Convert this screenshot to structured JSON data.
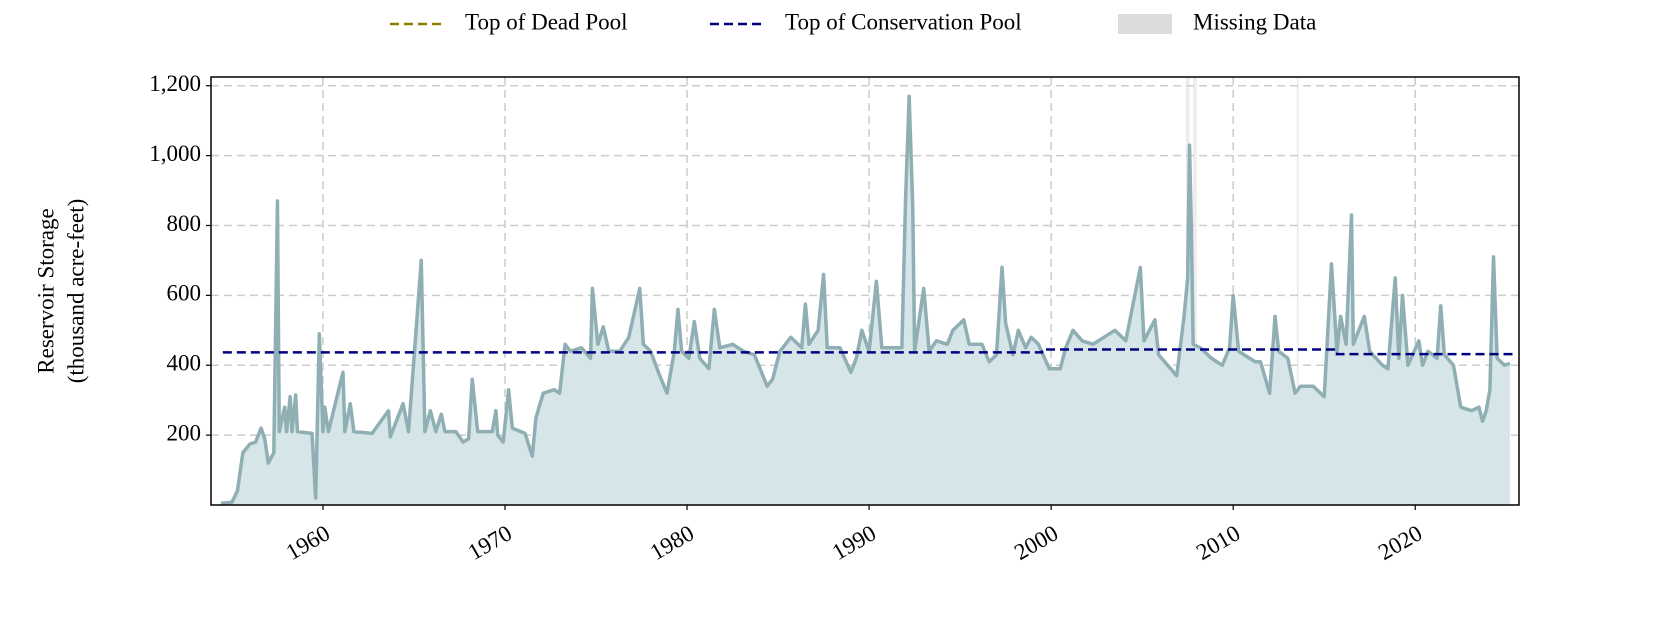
{
  "chart_data": {
    "type": "area-line",
    "y_label": [
      "Reservoir Storage",
      "(thousand acre-feet)"
    ],
    "xlim": [
      1953.85,
      2025.7
    ],
    "xticks": [
      1960,
      1970,
      1980,
      1990,
      2000,
      2010,
      2020
    ],
    "ylim": [
      0,
      1225
    ],
    "yticks": [
      200,
      400,
      600,
      800,
      {
        "value": 1000,
        "label": "1,000"
      },
      {
        "value": 1200,
        "label": "1,200"
      }
    ],
    "grid": true,
    "series": [
      {
        "color": "#8fafb4",
        "fill": "#d6e5e7",
        "x": [
          1954.4,
          1955.0,
          1955.3,
          1955.6,
          1956.0,
          1956.3,
          1956.6,
          1956.8,
          1957.0,
          1957.3,
          1957.5,
          1957.6,
          1957.9,
          1958.0,
          1958.2,
          1958.3,
          1958.5,
          1958.6,
          1959.4,
          1959.6,
          1959.8,
          1960.0,
          1960.1,
          1960.3,
          1961.1,
          1961.2,
          1961.5,
          1961.7,
          1962.7,
          1963.6,
          1963.7,
          1964.4,
          1964.7,
          1965.4,
          1965.6,
          1965.9,
          1966.2,
          1966.5,
          1966.7,
          1967.3,
          1967.7,
          1968.0,
          1968.2,
          1968.3,
          1968.5,
          1969.3,
          1969.5,
          1969.6,
          1969.9,
          1970.2,
          1970.4,
          1971.1,
          1971.5,
          1971.7,
          1972.1,
          1972.7,
          1973.0,
          1973.3,
          1973.6,
          1974.2,
          1974.7,
          1974.8,
          1975.1,
          1975.4,
          1975.7,
          1976.3,
          1976.8,
          1977.4,
          1977.6,
          1978.0,
          1978.5,
          1978.9,
          1979.3,
          1979.5,
          1979.7,
          1980.1,
          1980.4,
          1980.7,
          1981.2,
          1981.5,
          1981.8,
          1982.5,
          1983.1,
          1983.7,
          1984.4,
          1984.7,
          1985.1,
          1985.7,
          1986.3,
          1986.5,
          1986.7,
          1987.2,
          1987.5,
          1987.7,
          1988.4,
          1989.0,
          1989.3,
          1989.6,
          1990.0,
          1990.4,
          1990.7,
          1991.8,
          1992.0,
          1992.2,
          1992.4,
          1992.5,
          1993.0,
          1993.3,
          1993.7,
          1994.3,
          1994.6,
          1995.2,
          1995.5,
          1996.2,
          1996.6,
          1997.0,
          1997.3,
          1997.5,
          1997.9,
          1998.2,
          1998.6,
          1998.9,
          1999.3,
          1999.9,
          2000.5,
          2000.8,
          2001.2,
          2001.7,
          2002.3,
          2002.9,
          2003.5,
          2004.1,
          2004.9,
          2005.1,
          2005.7,
          2005.9,
          2006.4,
          2006.9,
          2007.3,
          2007.5,
          2007.6,
          2007.7,
          2007.8,
          2008.2,
          2008.8,
          2009.4,
          2009.8,
          2010.0,
          2010.3,
          2011.2,
          2011.5,
          2012.0,
          2012.3,
          2012.5,
          2013.0,
          2013.4,
          2013.7,
          2014.4,
          2015.0,
          2015.4,
          2015.7,
          2015.9,
          2016.2,
          2016.5,
          2016.6,
          2017.2,
          2017.5,
          2018.2,
          2018.5,
          2018.9,
          2019.1,
          2019.3,
          2019.6,
          2020.2,
          2020.4,
          2020.7,
          2021.2,
          2021.4,
          2021.6,
          2022.1,
          2022.5,
          2023.1,
          2023.5,
          2023.7,
          2023.9,
          2024.1,
          2024.3,
          2024.5,
          2024.9,
          2025.2
        ],
        "values": [
          5,
          8,
          40,
          150,
          175,
          180,
          220,
          190,
          120,
          150,
          870,
          210,
          280,
          210,
          310,
          210,
          315,
          210,
          205,
          20,
          490,
          210,
          280,
          210,
          380,
          210,
          290,
          210,
          205,
          270,
          195,
          290,
          210,
          700,
          210,
          270,
          210,
          260,
          210,
          210,
          180,
          190,
          360,
          310,
          210,
          210,
          270,
          200,
          180,
          330,
          220,
          205,
          140,
          250,
          320,
          330,
          320,
          460,
          440,
          450,
          420,
          620,
          460,
          510,
          440,
          440,
          480,
          620,
          460,
          440,
          370,
          320,
          440,
          560,
          440,
          420,
          525,
          420,
          390,
          560,
          450,
          460,
          440,
          430,
          340,
          360,
          440,
          480,
          450,
          575,
          460,
          500,
          660,
          450,
          450,
          380,
          420,
          500,
          440,
          640,
          450,
          450,
          870,
          1170,
          850,
          440,
          620,
          440,
          470,
          460,
          500,
          530,
          460,
          460,
          410,
          430,
          680,
          520,
          430,
          500,
          450,
          480,
          460,
          390,
          390,
          450,
          500,
          470,
          460,
          480,
          500,
          470,
          680,
          470,
          530,
          430,
          400,
          370,
          540,
          650,
          1030,
          800,
          460,
          450,
          420,
          400,
          450,
          600,
          440,
          410,
          410,
          320,
          540,
          440,
          420,
          320,
          340,
          340,
          310,
          690,
          440,
          540,
          460,
          830,
          460,
          540,
          440,
          400,
          390,
          650,
          420,
          600,
          400,
          470,
          400,
          440,
          420,
          570,
          430,
          400,
          280,
          270,
          280,
          240,
          270,
          330,
          710,
          420,
          400,
          405
        ]
      },
      {
        "name": "Top of Dead Pool",
        "color": "#8b8000"
      },
      {
        "name": "Top of Conservation Pool",
        "color": "#000080",
        "x": [
          1954.5,
          1999.5,
          1999.5,
          2015.7,
          2015.7,
          2025.4
        ],
        "values": [
          437,
          437,
          445,
          445,
          432,
          432
        ]
      }
    ],
    "missing_label": "Missing Data",
    "missing_color": "#dcdcdc",
    "missing_ranges": [
      [
        2007.4,
        2007.6
      ],
      [
        2007.8,
        2008.0
      ],
      [
        2013.5,
        2013.6
      ]
    ]
  }
}
